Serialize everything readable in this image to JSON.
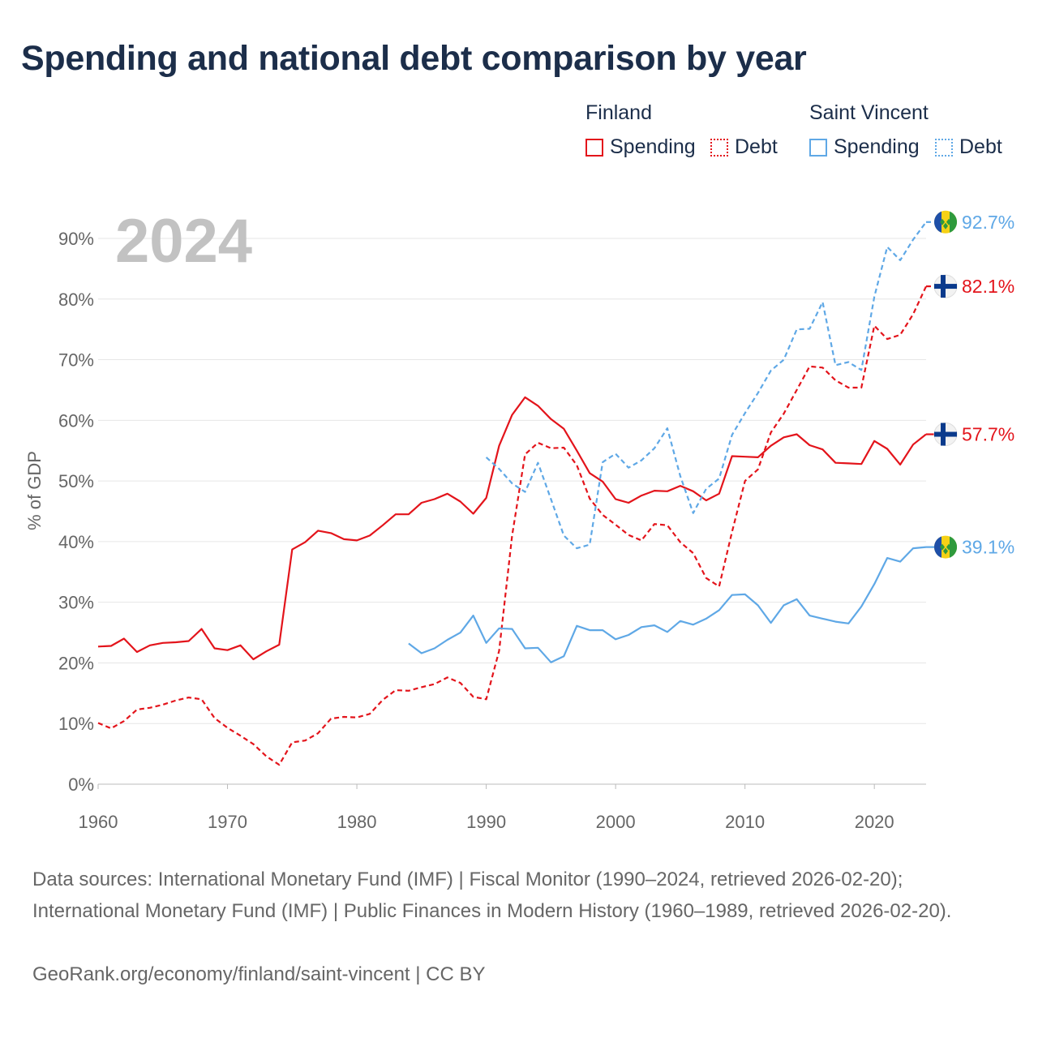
{
  "title": "Spending and national debt comparison by year",
  "legend": {
    "groups": [
      {
        "title": "Finland",
        "color": "#e3141b",
        "items": [
          {
            "label": "Spending",
            "style": "solid"
          },
          {
            "label": "Debt",
            "style": "dashed"
          }
        ]
      },
      {
        "title": "Saint Vincent",
        "color": "#5fa8e6",
        "items": [
          {
            "label": "Spending",
            "style": "solid"
          },
          {
            "label": "Debt",
            "style": "dashed"
          }
        ]
      }
    ]
  },
  "chart_data": {
    "type": "line",
    "year_label": "2024",
    "ylabel": "% of GDP",
    "xlabel": "",
    "xlim": [
      1960,
      2024
    ],
    "ylim": [
      0,
      90
    ],
    "y_ticks": [
      "0%",
      "10%",
      "20%",
      "30%",
      "40%",
      "50%",
      "60%",
      "70%",
      "80%",
      "90%"
    ],
    "x_ticks": [
      "1960",
      "1970",
      "1980",
      "1990",
      "2000",
      "2010",
      "2020"
    ],
    "series": [
      {
        "name": "Finland Spending",
        "country": "Finland",
        "color": "#e3141b",
        "dashed": false,
        "end_label": "57.7%",
        "flag": "finland",
        "x": [
          1960,
          1961,
          1962,
          1963,
          1964,
          1965,
          1966,
          1967,
          1968,
          1969,
          1970,
          1971,
          1972,
          1973,
          1974,
          1975,
          1976,
          1977,
          1978,
          1979,
          1980,
          1981,
          1982,
          1983,
          1984,
          1985,
          1986,
          1987,
          1988,
          1989,
          1990,
          1991,
          1992,
          1993,
          1994,
          1995,
          1996,
          1997,
          1998,
          1999,
          2000,
          2001,
          2002,
          2003,
          2004,
          2005,
          2006,
          2007,
          2008,
          2009,
          2010,
          2011,
          2012,
          2013,
          2014,
          2015,
          2016,
          2017,
          2018,
          2019,
          2020,
          2021,
          2022,
          2023,
          2024
        ],
        "values": [
          22.7,
          22.8,
          24.0,
          21.8,
          22.9,
          23.3,
          23.4,
          23.6,
          25.6,
          22.4,
          22.1,
          22.9,
          20.6,
          21.9,
          23.0,
          38.7,
          39.9,
          41.8,
          41.4,
          40.4,
          40.2,
          41.0,
          42.7,
          44.5,
          44.5,
          46.4,
          47.0,
          47.9,
          46.6,
          44.6,
          47.2,
          55.8,
          60.9,
          63.8,
          62.4,
          60.2,
          58.6,
          55.0,
          51.3,
          49.9,
          47.0,
          46.4,
          47.6,
          48.4,
          48.3,
          49.2,
          48.3,
          46.8,
          47.9,
          54.1,
          54.0,
          53.9,
          55.8,
          57.2,
          57.7,
          55.9,
          55.2,
          53.0,
          52.9,
          52.8,
          56.6,
          55.3,
          52.7,
          56.0,
          57.7
        ]
      },
      {
        "name": "Finland Debt",
        "country": "Finland",
        "color": "#e3141b",
        "dashed": true,
        "end_label": "82.1%",
        "flag": "finland",
        "x": [
          1960,
          1961,
          1962,
          1963,
          1964,
          1965,
          1966,
          1967,
          1968,
          1969,
          1970,
          1971,
          1972,
          1973,
          1974,
          1975,
          1976,
          1977,
          1978,
          1979,
          1980,
          1981,
          1982,
          1983,
          1984,
          1985,
          1986,
          1987,
          1988,
          1989,
          1990,
          1991,
          1992,
          1993,
          1994,
          1995,
          1996,
          1997,
          1998,
          1999,
          2000,
          2001,
          2002,
          2003,
          2004,
          2005,
          2006,
          2007,
          2008,
          2009,
          2010,
          2011,
          2012,
          2013,
          2014,
          2015,
          2016,
          2017,
          2018,
          2019,
          2020,
          2021,
          2022,
          2023,
          2024
        ],
        "values": [
          10.1,
          9.2,
          10.4,
          12.3,
          12.6,
          13.1,
          13.8,
          14.3,
          14.0,
          10.9,
          9.3,
          8.0,
          6.6,
          4.6,
          3.2,
          6.9,
          7.2,
          8.4,
          10.8,
          11.1,
          11.0,
          11.6,
          13.9,
          15.5,
          15.4,
          16.0,
          16.5,
          17.6,
          16.7,
          14.4,
          14.0,
          22.0,
          41.0,
          54.4,
          56.3,
          55.4,
          55.5,
          52.6,
          47.1,
          44.4,
          42.8,
          41.1,
          40.2,
          42.9,
          42.7,
          39.9,
          38.1,
          34.0,
          32.6,
          41.6,
          50.0,
          51.9,
          58.0,
          61.1,
          65.0,
          68.9,
          68.7,
          66.6,
          65.4,
          65.4,
          75.6,
          73.4,
          74.1,
          77.5,
          82.1
        ]
      },
      {
        "name": "Saint Vincent Spending",
        "country": "Saint Vincent",
        "color": "#5fa8e6",
        "dashed": false,
        "end_label": "39.1%",
        "flag": "saint-vincent",
        "x": [
          1984,
          1985,
          1986,
          1987,
          1988,
          1989,
          1990,
          1991,
          1992,
          1993,
          1994,
          1995,
          1996,
          1997,
          1998,
          1999,
          2000,
          2001,
          2002,
          2003,
          2004,
          2005,
          2006,
          2007,
          2008,
          2009,
          2010,
          2011,
          2012,
          2013,
          2014,
          2015,
          2016,
          2017,
          2018,
          2019,
          2020,
          2021,
          2022,
          2023,
          2024
        ],
        "values": [
          23.2,
          21.6,
          22.4,
          23.8,
          25.0,
          27.8,
          23.3,
          25.7,
          25.6,
          22.4,
          22.5,
          20.1,
          21.1,
          26.1,
          25.4,
          25.4,
          23.9,
          24.6,
          25.9,
          26.2,
          25.1,
          26.9,
          26.3,
          27.3,
          28.7,
          31.2,
          31.3,
          29.5,
          26.6,
          29.5,
          30.5,
          27.8,
          27.3,
          26.8,
          26.5,
          29.3,
          33.0,
          37.3,
          36.7,
          38.9,
          39.1
        ]
      },
      {
        "name": "Saint Vincent Debt",
        "country": "Saint Vincent",
        "color": "#5fa8e6",
        "dashed": true,
        "end_label": "92.7%",
        "flag": "saint-vincent",
        "x": [
          1990,
          1991,
          1992,
          1993,
          1994,
          1995,
          1996,
          1997,
          1998,
          1999,
          2000,
          2001,
          2002,
          2003,
          2004,
          2005,
          2006,
          2007,
          2008,
          2009,
          2010,
          2011,
          2012,
          2013,
          2014,
          2015,
          2016,
          2017,
          2018,
          2019,
          2020,
          2021,
          2022,
          2023,
          2024
        ],
        "values": [
          53.9,
          52.0,
          49.6,
          48.2,
          53.0,
          47.0,
          41.0,
          38.9,
          39.5,
          53.1,
          54.5,
          52.2,
          53.4,
          55.4,
          58.7,
          50.8,
          44.7,
          48.7,
          50.4,
          57.6,
          61.2,
          64.5,
          68.2,
          70.0,
          75.0,
          75.1,
          79.5,
          69.1,
          69.6,
          68.3,
          80.4,
          88.6,
          86.4,
          89.8,
          92.7
        ]
      }
    ]
  },
  "footer": {
    "sources": "Data sources: International Monetary Fund (IMF) | Fiscal Monitor (1990–2024, retrieved 2026-02-20); International Monetary Fund (IMF) | Public Finances in Modern History (1960–1989, retrieved 2026-02-20).",
    "credit": "GeoRank.org/economy/finland/saint-vincent | CC BY"
  }
}
